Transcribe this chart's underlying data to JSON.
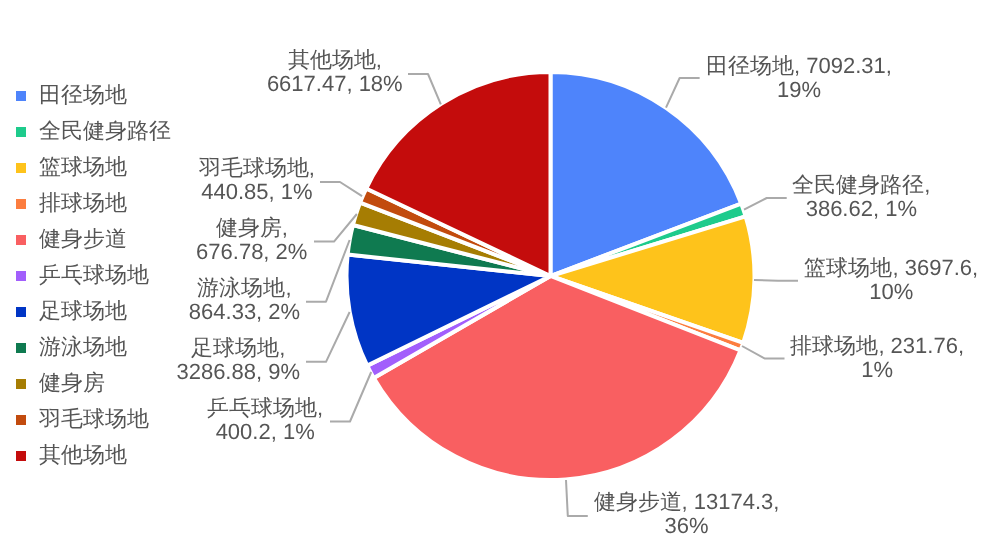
{
  "chart_data": {
    "type": "pie",
    "categories": [
      "田径场地",
      "全民健身路径",
      "篮球场地",
      "排球场地",
      "健身步道",
      "乒乓球场地",
      "足球场地",
      "游泳场地",
      "健身房",
      "羽毛球场地",
      "其他场地"
    ],
    "values": [
      7092.31,
      386.62,
      3697.6,
      231.76,
      13174.3,
      400.2,
      3286.88,
      864.33,
      676.78,
      440.85,
      6617.47
    ],
    "colors": [
      "#4e84fb",
      "#1ecb8c",
      "#fec31b",
      "#fc7d3f",
      "#f95f61",
      "#a25ffc",
      "#0035c5",
      "#0f7a50",
      "#a67d03",
      "#c24b0e",
      "#c40c0c"
    ],
    "value_labels": [
      "田径场地, 7092.31, 19%",
      "全民健身路径, 386.62, 1%",
      "篮球场地, 3697.6, 10%",
      "排球场地, 231.76, 1%",
      "健身步道, 13174.3, 36%",
      "乒乓球场地, 400.2, 1%",
      "足球场地, 3286.88, 9%",
      "游泳场地, 864.33, 2%",
      "健身房, 676.78, 2%",
      "羽毛球场地, 440.85, 1%",
      "其他场地, 6617.47, 18%"
    ],
    "legend": "left"
  }
}
